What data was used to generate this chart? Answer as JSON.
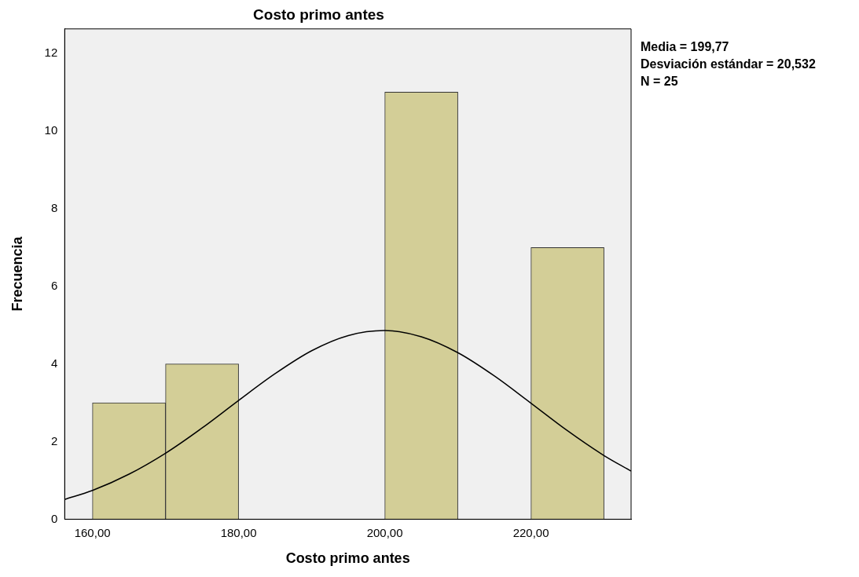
{
  "chart_data": {
    "type": "histogram",
    "title": "Costo primo antes",
    "xlabel": "Costo primo antes",
    "ylabel": "Frecuencia",
    "annotations": [
      "Media = 199,77",
      "Desviación estándar = 20,532",
      "N = 25"
    ],
    "xlim": [
      156.2,
      233.7
    ],
    "ylim": [
      0,
      12.63
    ],
    "xticks": [
      {
        "value": 160,
        "label": "160,00"
      },
      {
        "value": 180,
        "label": "180,00"
      },
      {
        "value": 200,
        "label": "200,00"
      },
      {
        "value": 220,
        "label": "220,00"
      }
    ],
    "yticks": [
      0,
      2,
      4,
      6,
      8,
      10,
      12
    ],
    "grid": false,
    "legend": false,
    "series": [
      {
        "color": "#d3ce97",
        "bins": [
          160,
          170,
          180,
          190,
          200,
          210,
          220,
          230
        ],
        "values": [
          3,
          4,
          0,
          0,
          11,
          0,
          7
        ]
      },
      {
        "type": "line",
        "color": "#000000",
        "x": [
          156.2,
          160,
          165,
          170,
          175,
          180,
          185,
          190,
          195,
          200,
          205,
          210,
          215,
          220,
          225,
          230,
          233.7
        ],
        "values": [
          0.51,
          0.74,
          1.16,
          1.7,
          2.35,
          3.06,
          3.75,
          4.34,
          4.73,
          4.86,
          4.7,
          4.29,
          3.69,
          2.99,
          2.28,
          1.64,
          1.24
        ]
      }
    ]
  }
}
